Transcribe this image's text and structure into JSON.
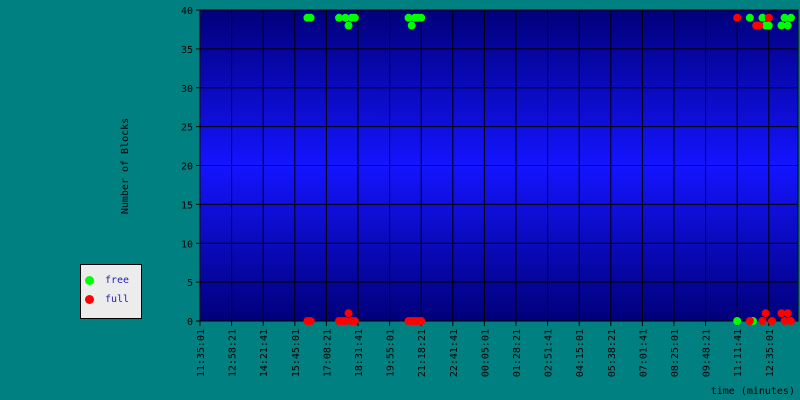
{
  "chart_data": {
    "type": "scatter",
    "xlabel": "time (minutes)",
    "ylabel": "Number of Blocks",
    "ylim": [
      0,
      40
    ],
    "y_ticks": [
      0,
      5,
      10,
      15,
      20,
      25,
      30,
      35,
      40
    ],
    "x_ticks": [
      "11:35:01",
      "12:58:21",
      "14:21:41",
      "15:45:01",
      "17:08:21",
      "18:31:41",
      "19:55:01",
      "21:18:21",
      "22:41:41",
      "00:05:01",
      "01:28:21",
      "02:51:41",
      "04:15:01",
      "05:38:21",
      "07:01:41",
      "08:25:01",
      "09:48:21",
      "11:11:41",
      "12:35:01"
    ],
    "grid": true,
    "legend_position": "left",
    "series": [
      {
        "name": "free",
        "color": "#00ff00",
        "points": [
          [
            3.4,
            39
          ],
          [
            3.5,
            39
          ],
          [
            4.4,
            39
          ],
          [
            4.6,
            39
          ],
          [
            4.7,
            38
          ],
          [
            4.8,
            39
          ],
          [
            4.9,
            39
          ],
          [
            6.6,
            39
          ],
          [
            6.7,
            38
          ],
          [
            6.8,
            39
          ],
          [
            6.9,
            39
          ],
          [
            7.0,
            39
          ],
          [
            17.0,
            0
          ],
          [
            17.4,
            39
          ],
          [
            17.5,
            0
          ],
          [
            17.8,
            39
          ],
          [
            17.9,
            38
          ],
          [
            18.0,
            38
          ],
          [
            18.4,
            38
          ],
          [
            18.5,
            39
          ],
          [
            18.6,
            38
          ],
          [
            18.7,
            39
          ]
        ]
      },
      {
        "name": "full",
        "color": "#ff0000",
        "points": [
          [
            3.4,
            0
          ],
          [
            3.5,
            0
          ],
          [
            4.4,
            0
          ],
          [
            4.5,
            0
          ],
          [
            4.6,
            0
          ],
          [
            4.7,
            1
          ],
          [
            4.8,
            0
          ],
          [
            4.9,
            0
          ],
          [
            6.6,
            0
          ],
          [
            6.7,
            0
          ],
          [
            6.8,
            0
          ],
          [
            6.9,
            0
          ],
          [
            7.0,
            0
          ],
          [
            17.0,
            39
          ],
          [
            17.4,
            0
          ],
          [
            17.6,
            38
          ],
          [
            17.7,
            38
          ],
          [
            17.8,
            0
          ],
          [
            17.9,
            1
          ],
          [
            18.0,
            39
          ],
          [
            18.1,
            0
          ],
          [
            18.4,
            1
          ],
          [
            18.5,
            0
          ],
          [
            18.6,
            1
          ],
          [
            18.7,
            0
          ]
        ]
      }
    ]
  },
  "legend": {
    "items": [
      {
        "label": "free",
        "color": "#00ff00"
      },
      {
        "label": "full",
        "color": "#ff0000"
      }
    ]
  }
}
